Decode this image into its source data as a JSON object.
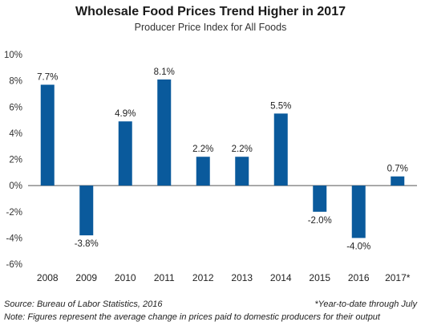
{
  "chart_data": {
    "type": "bar",
    "title": "Wholesale Food Prices Trend Higher in 2017",
    "subtitle": "Producer Price Index for All Foods",
    "categories": [
      "2008",
      "2009",
      "2010",
      "2011",
      "2012",
      "2013",
      "2014",
      "2015",
      "2016",
      "2017*"
    ],
    "values": [
      7.7,
      -3.8,
      4.9,
      8.1,
      2.2,
      2.2,
      5.5,
      -2.0,
      -4.0,
      0.7
    ],
    "value_labels": [
      "7.7%",
      "-3.8%",
      "4.9%",
      "8.1%",
      "2.2%",
      "2.2%",
      "5.5%",
      "-2.0%",
      "-4.0%",
      "0.7%"
    ],
    "y_ticks": [
      10,
      8,
      6,
      4,
      2,
      0,
      -2,
      -4,
      -6
    ],
    "y_tick_labels": [
      "10%",
      "8%",
      "6%",
      "4%",
      "2%",
      "0%",
      "-2%",
      "-4%",
      "-6%"
    ],
    "ylim": [
      -6,
      10
    ],
    "grid": false,
    "bar_color": "#0a5a9c",
    "xlabel": "",
    "ylabel": ""
  },
  "footer": {
    "source": "Source: Bureau of Labor Statistics, 2016",
    "ytd_note": "*Year-to-date through July",
    "note": "Note: Figures represent the average change in prices paid to domestic producers for their output"
  }
}
